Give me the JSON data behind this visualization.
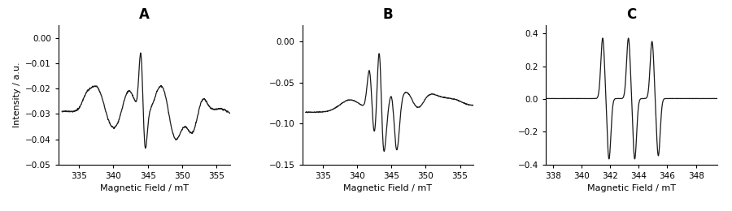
{
  "panel_A": {
    "title": "A",
    "xlim": [
      332,
      357
    ],
    "ylim": [
      -0.05,
      0.005
    ],
    "yticks": [
      0,
      -0.01,
      -0.02,
      -0.03,
      -0.04,
      -0.05
    ],
    "xticks": [
      335,
      340,
      345,
      350,
      355
    ],
    "xlabel": "Magnetic Field / mT",
    "ylabel": "Intensity / a.u."
  },
  "panel_B": {
    "title": "B",
    "xlim": [
      332,
      357
    ],
    "ylim": [
      -0.15,
      0.02
    ],
    "yticks": [
      0,
      -0.05,
      -0.1,
      -0.15
    ],
    "xticks": [
      335,
      340,
      345,
      350,
      355
    ],
    "xlabel": "Magnetic Field / mT",
    "ylabel": ""
  },
  "panel_C": {
    "title": "C",
    "xlim": [
      337.5,
      349.5
    ],
    "ylim": [
      -0.4,
      0.45
    ],
    "yticks": [
      -0.4,
      -0.2,
      0,
      0.2,
      0.4
    ],
    "xticks": [
      338,
      340,
      342,
      344,
      346,
      348
    ],
    "xlabel": "Magnetic Field / mT",
    "ylabel": ""
  },
  "line_color": "#1a1a1a",
  "line_width": 0.9,
  "background_color": "#ffffff",
  "title_fontsize": 12,
  "label_fontsize": 8,
  "tick_fontsize": 7.5
}
